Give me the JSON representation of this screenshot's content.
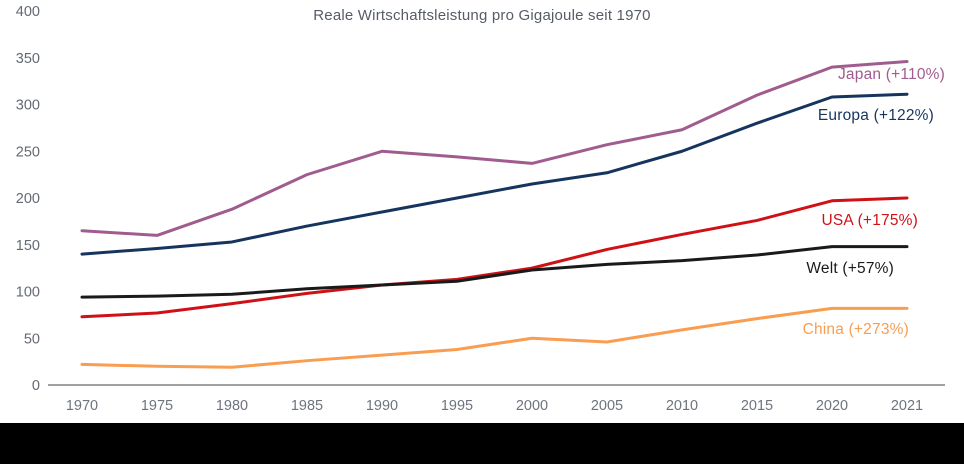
{
  "page": {
    "background_color": "#ffffff",
    "footer_bar_color": "#000000"
  },
  "chart_data": {
    "type": "line",
    "title": "Reale Wirtschaftsleistung pro Gigajoule seit 1970",
    "categories": [
      "1970",
      "1975",
      "1980",
      "1985",
      "1990",
      "1995",
      "2000",
      "2005",
      "2010",
      "2015",
      "2020",
      "2021"
    ],
    "y_ticks": [
      0,
      50,
      100,
      150,
      200,
      250,
      300,
      350,
      400
    ],
    "ylim": [
      0,
      400
    ],
    "grid": "off",
    "legend": "direct-labels-right",
    "axis_line_color": "#9fa1a5",
    "title_color": "#565c65",
    "tick_label_color": "#6a707a",
    "series": [
      {
        "name": "Japan",
        "label": "Japan (+110%)",
        "color": "#a05c8e",
        "values": [
          165,
          160,
          188,
          225,
          250,
          244,
          237,
          257,
          273,
          310,
          340,
          346
        ],
        "label_anchor": {
          "x": 945,
          "y": 79,
          "align": "end"
        }
      },
      {
        "name": "Europa",
        "label": "Europa (+122%)",
        "color": "#16355e",
        "values": [
          140,
          146,
          153,
          170,
          185,
          200,
          215,
          227,
          250,
          280,
          308,
          311
        ],
        "label_anchor": {
          "x": 934,
          "y": 120,
          "align": "end"
        }
      },
      {
        "name": "USA",
        "label": "USA (+175%)",
        "color": "#cf1116",
        "values": [
          73,
          77,
          87,
          98,
          107,
          113,
          125,
          145,
          161,
          176,
          197,
          200
        ],
        "label_anchor": {
          "x": 918,
          "y": 225,
          "align": "end"
        }
      },
      {
        "name": "Welt",
        "label": "Welt (+57%)",
        "color": "#1a1a1a",
        "values": [
          94,
          95,
          97,
          103,
          107,
          111,
          123,
          129,
          133,
          139,
          148,
          148
        ],
        "label_anchor": {
          "x": 894,
          "y": 273,
          "align": "end"
        }
      },
      {
        "name": "China",
        "label": "China (+273%)",
        "color": "#f99d51",
        "values": [
          22,
          20,
          19,
          26,
          32,
          38,
          50,
          46,
          59,
          71,
          82,
          82
        ],
        "label_anchor": {
          "x": 909,
          "y": 334,
          "align": "end"
        }
      }
    ]
  }
}
